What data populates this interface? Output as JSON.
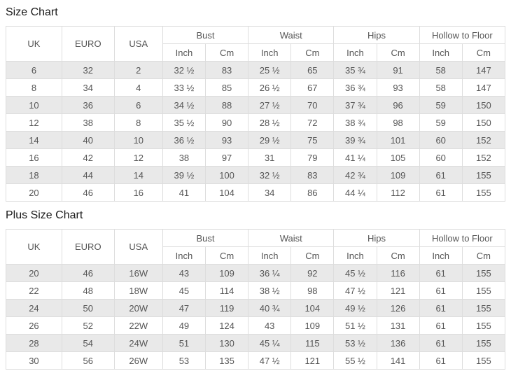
{
  "tables": [
    {
      "title": "Size Chart",
      "columns": [
        {
          "label": "UK"
        },
        {
          "label": "EURO"
        },
        {
          "label": "USA"
        },
        {
          "label": "Bust",
          "sub": [
            "Inch",
            "Cm"
          ]
        },
        {
          "label": "Waist",
          "sub": [
            "Inch",
            "Cm"
          ]
        },
        {
          "label": "Hips",
          "sub": [
            "Inch",
            "Cm"
          ]
        },
        {
          "label": "Hollow to Floor",
          "sub": [
            "Inch",
            "Cm"
          ]
        }
      ],
      "rows": [
        [
          "6",
          "32",
          "2",
          "32 ½",
          "83",
          "25 ½",
          "65",
          "35 ¾",
          "91",
          "58",
          "147"
        ],
        [
          "8",
          "34",
          "4",
          "33 ½",
          "85",
          "26 ½",
          "67",
          "36 ¾",
          "93",
          "58",
          "147"
        ],
        [
          "10",
          "36",
          "6",
          "34 ½",
          "88",
          "27 ½",
          "70",
          "37 ¾",
          "96",
          "59",
          "150"
        ],
        [
          "12",
          "38",
          "8",
          "35 ½",
          "90",
          "28 ½",
          "72",
          "38 ¾",
          "98",
          "59",
          "150"
        ],
        [
          "14",
          "40",
          "10",
          "36 ½",
          "93",
          "29 ½",
          "75",
          "39 ¾",
          "101",
          "60",
          "152"
        ],
        [
          "16",
          "42",
          "12",
          "38",
          "97",
          "31",
          "79",
          "41 ¼",
          "105",
          "60",
          "152"
        ],
        [
          "18",
          "44",
          "14",
          "39 ½",
          "100",
          "32 ½",
          "83",
          "42 ¾",
          "109",
          "61",
          "155"
        ],
        [
          "20",
          "46",
          "16",
          "41",
          "104",
          "34",
          "86",
          "44 ¼",
          "112",
          "61",
          "155"
        ]
      ]
    },
    {
      "title": "Plus Size Chart",
      "columns": [
        {
          "label": "UK"
        },
        {
          "label": "EURO"
        },
        {
          "label": "USA"
        },
        {
          "label": "Bust",
          "sub": [
            "Inch",
            "Cm"
          ]
        },
        {
          "label": "Waist",
          "sub": [
            "Inch",
            "Cm"
          ]
        },
        {
          "label": "Hips",
          "sub": [
            "Inch",
            "Cm"
          ]
        },
        {
          "label": "Hollow to Floor",
          "sub": [
            "Inch",
            "Cm"
          ]
        }
      ],
      "rows": [
        [
          "20",
          "46",
          "16W",
          "43",
          "109",
          "36 ¼",
          "92",
          "45 ½",
          "116",
          "61",
          "155"
        ],
        [
          "22",
          "48",
          "18W",
          "45",
          "114",
          "38 ½",
          "98",
          "47 ½",
          "121",
          "61",
          "155"
        ],
        [
          "24",
          "50",
          "20W",
          "47",
          "119",
          "40 ¾",
          "104",
          "49 ½",
          "126",
          "61",
          "155"
        ],
        [
          "26",
          "52",
          "22W",
          "49",
          "124",
          "43",
          "109",
          "51 ½",
          "131",
          "61",
          "155"
        ],
        [
          "28",
          "54",
          "24W",
          "51",
          "130",
          "45 ¼",
          "115",
          "53 ½",
          "136",
          "61",
          "155"
        ],
        [
          "30",
          "56",
          "26W",
          "53",
          "135",
          "47 ½",
          "121",
          "55 ½",
          "141",
          "61",
          "155"
        ]
      ]
    }
  ]
}
